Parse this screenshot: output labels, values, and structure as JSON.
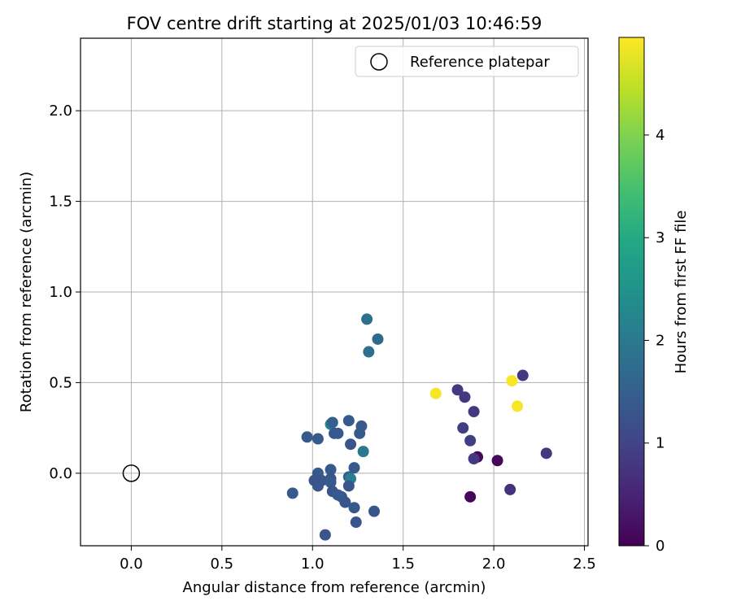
{
  "chart_data": {
    "type": "scatter",
    "title": "FOV centre drift starting at 2025/01/03 10:46:59",
    "xlabel": "Angular distance from reference (arcmin)",
    "ylabel": "Rotation from reference (arcmin)",
    "xlim": [
      -0.28,
      2.52
    ],
    "ylim": [
      -0.4,
      2.4
    ],
    "xticks": [
      "0.0",
      "0.5",
      "1.0",
      "1.5",
      "2.0",
      "2.5"
    ],
    "yticks": [
      "0.0",
      "0.5",
      "1.0",
      "1.5",
      "2.0"
    ],
    "grid": true,
    "legend": {
      "placement": "top-right",
      "entries": [
        "Reference platepar"
      ]
    },
    "reference_point": {
      "x": 0.0,
      "y": 0.0,
      "marker": "open-circle"
    },
    "colorbar": {
      "label": "Hours from first FF file",
      "range": [
        0,
        4.95
      ],
      "ticks": [
        "0",
        "1",
        "2",
        "3",
        "4"
      ],
      "colormap": "viridis"
    },
    "points": [
      {
        "x": 1.3,
        "y": 0.85,
        "c": 1.8
      },
      {
        "x": 1.36,
        "y": 0.74,
        "c": 1.7
      },
      {
        "x": 1.31,
        "y": 0.67,
        "c": 1.8
      },
      {
        "x": 1.1,
        "y": 0.27,
        "c": 2.2
      },
      {
        "x": 1.11,
        "y": 0.28,
        "c": 1.5
      },
      {
        "x": 1.2,
        "y": 0.29,
        "c": 1.4
      },
      {
        "x": 1.27,
        "y": 0.26,
        "c": 1.4
      },
      {
        "x": 0.97,
        "y": 0.2,
        "c": 1.4
      },
      {
        "x": 1.03,
        "y": 0.19,
        "c": 1.4
      },
      {
        "x": 1.12,
        "y": 0.22,
        "c": 1.4
      },
      {
        "x": 1.14,
        "y": 0.22,
        "c": 1.4
      },
      {
        "x": 1.26,
        "y": 0.22,
        "c": 1.4
      },
      {
        "x": 1.21,
        "y": 0.16,
        "c": 1.3
      },
      {
        "x": 1.28,
        "y": 0.12,
        "c": 2.0
      },
      {
        "x": 1.23,
        "y": 0.03,
        "c": 1.4
      },
      {
        "x": 1.1,
        "y": 0.02,
        "c": 1.4
      },
      {
        "x": 1.03,
        "y": 0.0,
        "c": 1.4
      },
      {
        "x": 1.2,
        "y": -0.02,
        "c": 1.4
      },
      {
        "x": 1.21,
        "y": -0.03,
        "c": 2.1
      },
      {
        "x": 1.01,
        "y": -0.04,
        "c": 1.3
      },
      {
        "x": 1.05,
        "y": -0.04,
        "c": 1.3
      },
      {
        "x": 1.1,
        "y": -0.03,
        "c": 1.3
      },
      {
        "x": 1.1,
        "y": -0.05,
        "c": 1.4
      },
      {
        "x": 1.03,
        "y": -0.07,
        "c": 1.3
      },
      {
        "x": 1.2,
        "y": -0.07,
        "c": 1.3
      },
      {
        "x": 0.89,
        "y": -0.11,
        "c": 1.4
      },
      {
        "x": 1.11,
        "y": -0.1,
        "c": 1.3
      },
      {
        "x": 1.14,
        "y": -0.12,
        "c": 1.4
      },
      {
        "x": 1.16,
        "y": -0.13,
        "c": 1.4
      },
      {
        "x": 1.18,
        "y": -0.16,
        "c": 1.3
      },
      {
        "x": 1.23,
        "y": -0.19,
        "c": 1.4
      },
      {
        "x": 1.34,
        "y": -0.21,
        "c": 1.3
      },
      {
        "x": 1.24,
        "y": -0.27,
        "c": 1.3
      },
      {
        "x": 1.07,
        "y": -0.34,
        "c": 1.3
      },
      {
        "x": 1.68,
        "y": 0.44,
        "c": 4.9
      },
      {
        "x": 2.1,
        "y": 0.51,
        "c": 4.9
      },
      {
        "x": 2.13,
        "y": 0.37,
        "c": 4.9
      },
      {
        "x": 1.8,
        "y": 0.46,
        "c": 0.8
      },
      {
        "x": 1.84,
        "y": 0.42,
        "c": 0.8
      },
      {
        "x": 2.16,
        "y": 0.54,
        "c": 0.8
      },
      {
        "x": 1.89,
        "y": 0.34,
        "c": 0.8
      },
      {
        "x": 1.83,
        "y": 0.25,
        "c": 0.9
      },
      {
        "x": 1.87,
        "y": 0.18,
        "c": 0.9
      },
      {
        "x": 2.29,
        "y": 0.11,
        "c": 0.8
      },
      {
        "x": 1.91,
        "y": 0.09,
        "c": 0.1
      },
      {
        "x": 1.89,
        "y": 0.08,
        "c": 0.8
      },
      {
        "x": 2.02,
        "y": 0.07,
        "c": 0.1
      },
      {
        "x": 2.09,
        "y": -0.09,
        "c": 0.7
      },
      {
        "x": 1.87,
        "y": -0.13,
        "c": 0.1
      }
    ]
  }
}
